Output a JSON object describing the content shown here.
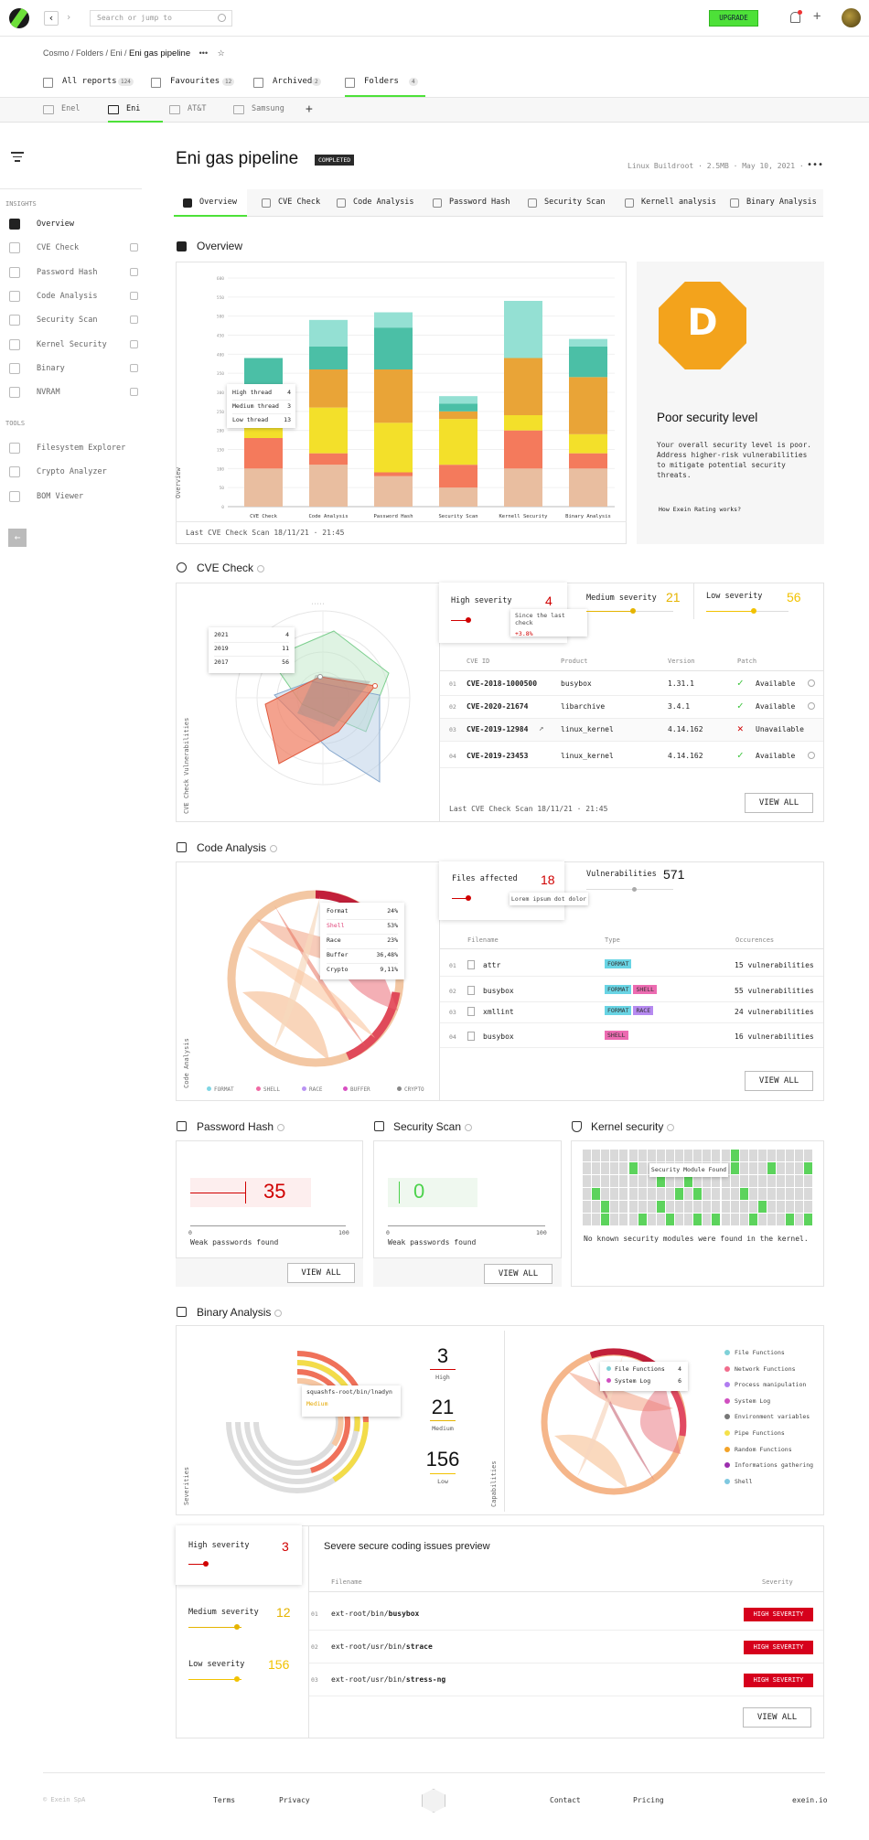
{
  "topbar": {
    "search_placeholder": "Search or jump to",
    "upgrade": "UPGRADE"
  },
  "breadcrumb": {
    "path": "Cosmo / Folders / Eni /",
    "current": "Eni gas pipeline"
  },
  "report_tabs": [
    {
      "label": "All reports",
      "count": "124"
    },
    {
      "label": "Favourites",
      "count": "12"
    },
    {
      "label": "Archived",
      "count": "2"
    },
    {
      "label": "Folders",
      "count": "4"
    }
  ],
  "folders": [
    "Enel",
    "Eni",
    "AT&T",
    "Samsung"
  ],
  "sidebar": {
    "insights_label": "INSIGHTS",
    "items": [
      "Overview",
      "CVE Check",
      "Password Hash",
      "Code Analysis",
      "Security Scan",
      "Kernel Security",
      "Binary",
      "NVRAM"
    ],
    "tools_label": "TOOLS",
    "tools": [
      "Filesystem Explorer",
      "Crypto Analyzer",
      "BOM Viewer"
    ]
  },
  "page": {
    "title": "Eni gas pipeline",
    "status": "COMPLETED",
    "meta": "Linux Buildroot · 2.5MB · May 10, 2021 ·"
  },
  "content_tabs": [
    "Overview",
    "CVE Check",
    "Code Analysis",
    "Password Hash",
    "Security Scan",
    "Kernell analysis",
    "Binary Analysis"
  ],
  "overview": {
    "title": "Overview",
    "axis_label": "Overview",
    "footer": "Last CVE Check Scan 18/11/21 · 21:45",
    "tooltip": [
      {
        "label": "High thread",
        "value": "4"
      },
      {
        "label": "Medium thread",
        "value": "3"
      },
      {
        "label": "Low thread",
        "value": "13"
      }
    ],
    "score_letter": "D",
    "score_title": "Poor security level",
    "score_text": "Your overall security level is poor. Address higher-risk vulnerabilities to mitigate potential security threats.",
    "score_link": "How Exein Rating works?"
  },
  "chart_data": {
    "type": "bar",
    "stacked": true,
    "categories": [
      "CVE Check",
      "Code Analysis",
      "Password Hash",
      "Security Scan",
      "Kernell Security",
      "Binary Analysis"
    ],
    "ylim": [
      0,
      600
    ],
    "yticks": [
      0,
      50,
      100,
      150,
      200,
      250,
      300,
      350,
      400,
      450,
      500,
      550,
      600
    ],
    "ylabel": "Overview",
    "series": [
      {
        "name": "Low",
        "color": "#e9bea0",
        "values": [
          100,
          110,
          80,
          50,
          100,
          100
        ]
      },
      {
        "name": "Red",
        "color": "#f47a5c",
        "values": [
          80,
          30,
          10,
          60,
          100,
          40
        ]
      },
      {
        "name": "Yellow",
        "color": "#f3e02a",
        "values": [
          30,
          120,
          130,
          120,
          40,
          50
        ]
      },
      {
        "name": "Orange",
        "color": "#e9a437",
        "values": [
          0,
          100,
          140,
          20,
          150,
          150
        ]
      },
      {
        "name": "Teal",
        "color": "#4bbfa6",
        "values": [
          180,
          60,
          110,
          20,
          0,
          80
        ]
      },
      {
        "name": "Light teal",
        "color": "#94e0d3",
        "values": [
          0,
          70,
          40,
          20,
          150,
          20
        ]
      }
    ]
  },
  "cve": {
    "title": "CVE Check",
    "axis_label": "CVE Check Vulnerabilities",
    "radar_labels": [
      {
        "year": "2021",
        "value": "4"
      },
      {
        "year": "2019",
        "value": "11"
      },
      {
        "year": "2017",
        "value": "56"
      }
    ],
    "high_label": "High severity",
    "high_value": "4",
    "medium_label": "Medium severity",
    "medium_value": "21",
    "low_label": "Low severity",
    "low_value": "56",
    "tooltip_text": "Since the last check",
    "tooltip_delta": "+3.8%",
    "columns": [
      "CVE ID",
      "Product",
      "Version",
      "Patch"
    ],
    "rows": [
      {
        "n": "01",
        "id": "CVE-2018-1000500",
        "product": "busybox",
        "version": "1.31.1",
        "patch": "Available",
        "ok": true
      },
      {
        "n": "02",
        "id": "CVE-2020-21674",
        "product": "libarchive",
        "version": "3.4.1",
        "patch": "Available",
        "ok": true
      },
      {
        "n": "03",
        "id": "CVE-2019-12984",
        "product": "linux_kernel",
        "version": "4.14.162",
        "patch": "Unavailable",
        "ok": false
      },
      {
        "n": "04",
        "id": "CVE-2019-23453",
        "product": "linux_kernel",
        "version": "4.14.162",
        "patch": "Available",
        "ok": true
      }
    ],
    "footer": "Last CVE Check Scan 18/11/21 · 21:45",
    "view_all": "VIEW ALL"
  },
  "code": {
    "title": "Code Analysis",
    "axis_label": "Code Analysis",
    "tooltip": [
      {
        "k": "Format",
        "v": "24%"
      },
      {
        "k": "Shell",
        "v": "53%"
      },
      {
        "k": "Race",
        "v": "23%"
      },
      {
        "k": "Buffer",
        "v": "36,48%"
      },
      {
        "k": "Crypto",
        "v": "9,11%"
      }
    ],
    "legend": [
      "FORMAT",
      "SHELL",
      "RACE",
      "BUFFER",
      "CRYPTO"
    ],
    "files_label": "Files affected",
    "files_value": "18",
    "vuln_label": "Vulnerabilities",
    "vuln_value": "571",
    "tooltip_text": "Lorem ipsum dot dolor",
    "columns": [
      "Filename",
      "Type",
      "Occurences"
    ],
    "rows": [
      {
        "n": "01",
        "file": "attr",
        "tags": [
          "FORMAT"
        ],
        "occ": "15 vulnerabilities"
      },
      {
        "n": "02",
        "file": "busybox",
        "tags": [
          "FORMAT",
          "SHELL"
        ],
        "occ": "55 vulnerabilities"
      },
      {
        "n": "03",
        "file": "xmllint",
        "tags": [
          "FORMAT",
          "RACE"
        ],
        "occ": "24 vulnerabilities"
      },
      {
        "n": "04",
        "file": "busybox",
        "tags": [
          "SHELL"
        ],
        "occ": "16 vulnerabilities"
      }
    ],
    "view_all": "VIEW ALL"
  },
  "password": {
    "title": "Password Hash",
    "value": "35",
    "fraction": 0.35,
    "axis_min": "0",
    "axis_max": "100",
    "caption": "Weak passwords found",
    "view_all": "VIEW ALL"
  },
  "security": {
    "title": "Security Scan",
    "value": "0",
    "fraction": 0,
    "axis_min": "0",
    "axis_max": "100",
    "caption": "Weak passwords found",
    "view_all": "VIEW ALL"
  },
  "kernel": {
    "title": "Kernel security",
    "tooltip": "Security Module Found",
    "caption": "No known security modules were found in the kernel."
  },
  "binary": {
    "title": "Binary Analysis",
    "axis_left": "Severities",
    "axis_right": "Capabilities",
    "tooltip_path": "squashfs-root/bin/lnadyn",
    "tooltip_level": "Medium",
    "high_value": "3",
    "high_label": "High",
    "medium_value": "21",
    "medium_label": "Medium",
    "low_value": "156",
    "low_label": "Low",
    "chord_tooltip": [
      {
        "k": "File Functions",
        "v": "4"
      },
      {
        "k": "System Log",
        "v": "6"
      }
    ],
    "legend": [
      {
        "label": "File Functions",
        "color": "#7fd1d8"
      },
      {
        "label": "Network Functions",
        "color": "#f16c8c"
      },
      {
        "label": "Process manipulation",
        "color": "#b07cf0"
      },
      {
        "label": "System Log",
        "color": "#d04fc0"
      },
      {
        "label": "Environment variables",
        "color": "#777777"
      },
      {
        "label": "Pipe Functions",
        "color": "#f5e14a"
      },
      {
        "label": "Random Functions",
        "color": "#f3a328"
      },
      {
        "label": "Informations gathering",
        "color": "#9b2fae"
      },
      {
        "label": "Shell",
        "color": "#7fc8e0"
      }
    ]
  },
  "coding": {
    "high_label": "High severity",
    "high_value": "3",
    "medium_label": "Medium severity",
    "medium_value": "12",
    "low_label": "Low severity",
    "low_value": "156",
    "title": "Severe secure coding issues preview",
    "columns": [
      "Filename",
      "Severity"
    ],
    "rows": [
      {
        "n": "01",
        "prefix": "ext-root/bin/",
        "file": "busybox",
        "sev": "HIGH SEVERITY"
      },
      {
        "n": "02",
        "prefix": "ext-root/usr/bin/",
        "file": "strace",
        "sev": "HIGH SEVERITY"
      },
      {
        "n": "03",
        "prefix": "ext-root/usr/bin/",
        "file": "stress-ng",
        "sev": "HIGH SEVERITY"
      }
    ],
    "view_all": "VIEW ALL"
  },
  "footer": {
    "copyright": "© Exein SpA",
    "links": [
      "Terms",
      "Privacy",
      "Contact",
      "Pricing"
    ],
    "site": "exein.io"
  }
}
